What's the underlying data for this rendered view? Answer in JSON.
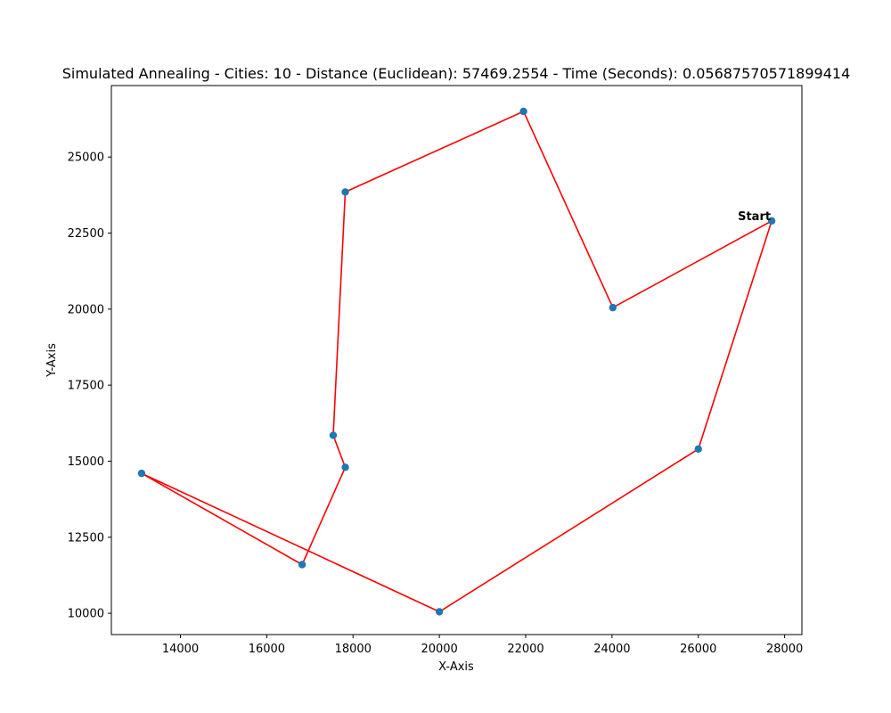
{
  "chart_data": {
    "type": "scatter",
    "title": "Simulated Annealing - Cities: 10 - Distance (Euclidean): 57469.2554 - Time (Seconds): 0.05687570571899414",
    "xlabel": "X-Axis",
    "ylabel": "Y-Axis",
    "xlim": [
      12400,
      28400
    ],
    "ylim": [
      9300,
      27350
    ],
    "xticks": [
      14000,
      16000,
      18000,
      20000,
      22000,
      24000,
      26000,
      28000
    ],
    "yticks": [
      10000,
      12500,
      15000,
      17500,
      20000,
      22500,
      25000
    ],
    "grid": false,
    "colors": {
      "points": "#1f77b4",
      "route": "#ff0000"
    },
    "points": {
      "x": [
        27700,
        24020,
        21950,
        17820,
        17540,
        17820,
        16820,
        13100,
        20000,
        26000
      ],
      "y": [
        22900,
        20050,
        26500,
        23850,
        15850,
        14800,
        11600,
        14600,
        10050,
        15400
      ]
    },
    "route": {
      "x": [
        27700,
        24020,
        21950,
        17820,
        17540,
        17820,
        16820,
        13100,
        20000,
        26000,
        27700
      ],
      "y": [
        22900,
        20050,
        26500,
        23850,
        15850,
        14800,
        11600,
        14600,
        10050,
        15400,
        22900
      ]
    },
    "annotations": [
      {
        "text": "Start",
        "x": 27700,
        "y": 22900
      }
    ]
  }
}
